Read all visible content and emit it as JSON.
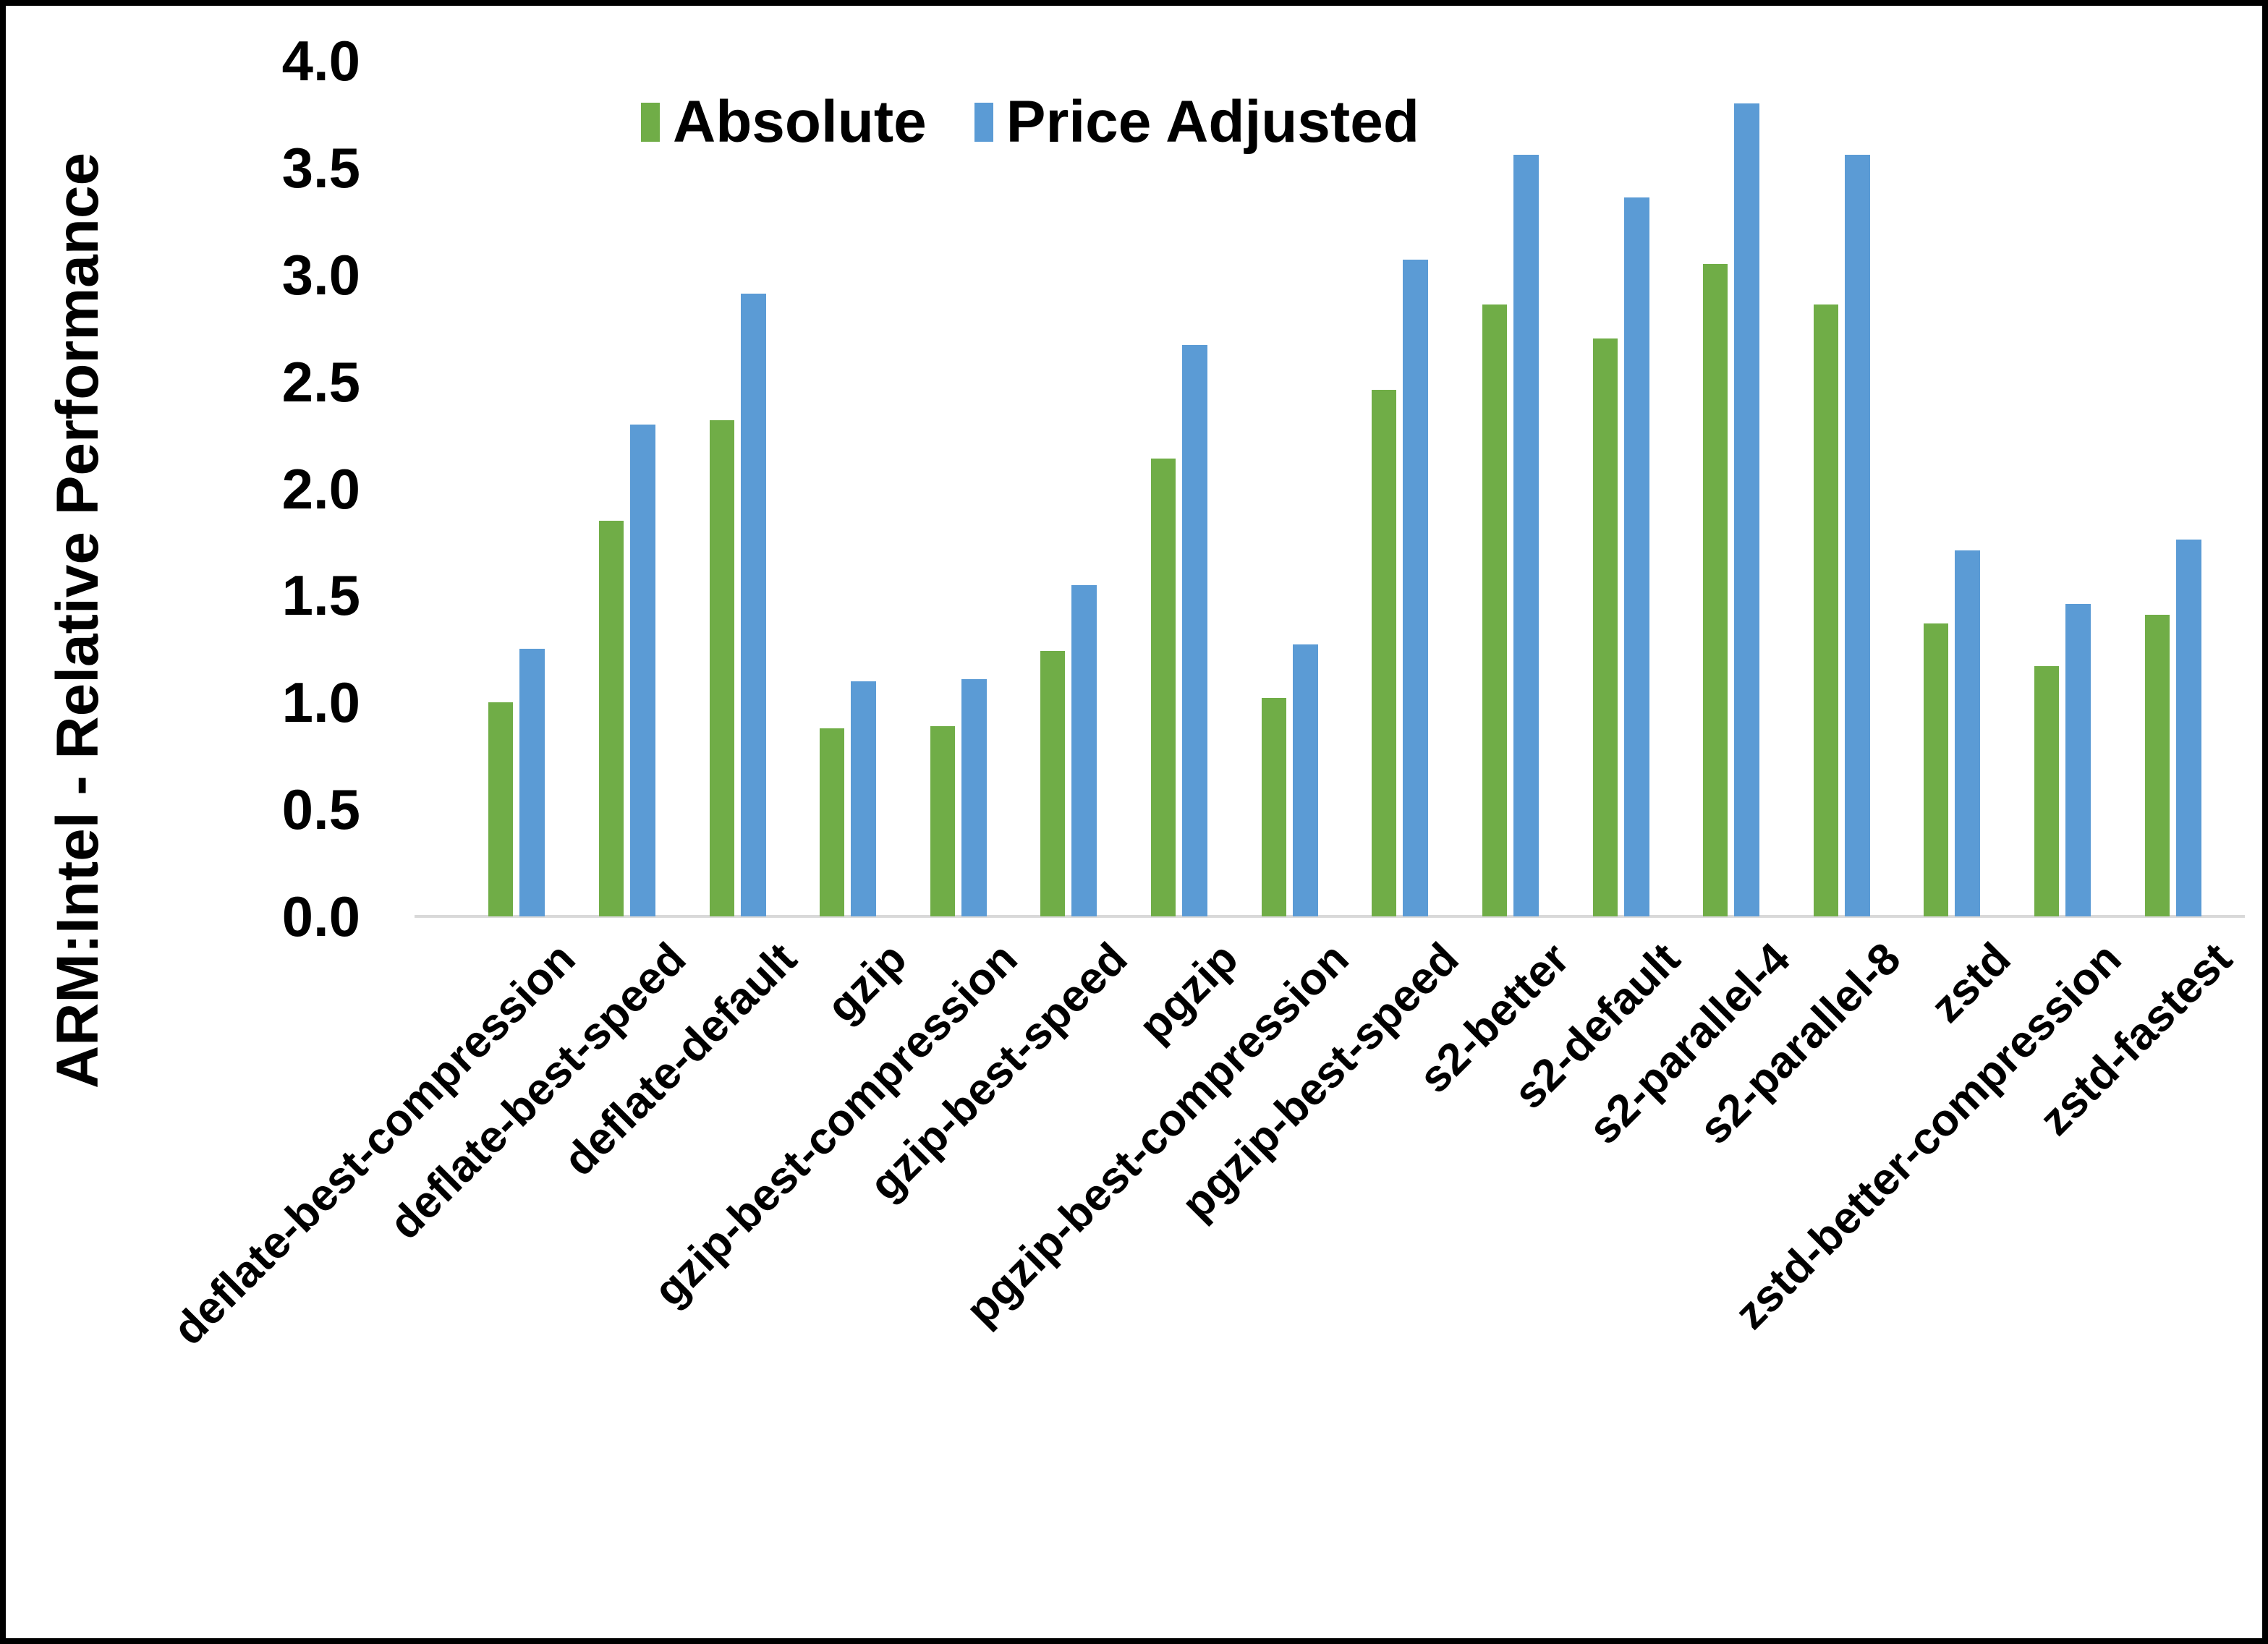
{
  "chart_data": {
    "type": "bar",
    "title": "",
    "ylabel": "ARM:Intel - Relative Performance",
    "xlabel": "",
    "ylim": [
      0,
      4.0
    ],
    "ytick_labels": [
      "4.0",
      "3.5",
      "3.0",
      "2.5",
      "2.0",
      "1.5",
      "1.0",
      "0.5",
      "0.0"
    ],
    "grid": false,
    "legend_position": "top-center",
    "categories": [
      "deflate-best-compression",
      "deflate-best-speed",
      "deflate-default",
      "gzip",
      "gzip-best-compression",
      "gzip-best-speed",
      "pgzip",
      "pgzip-best-compression",
      "pgzip-best-speed",
      "s2-better",
      "s2-default",
      "s2-parallel-4",
      "s2-parallel-8",
      "zstd",
      "zstd-better-compression",
      "zstd-fastest"
    ],
    "series": [
      {
        "name": "Absolute",
        "color": "#70AD47",
        "values": [
          1.0,
          1.85,
          2.32,
          0.88,
          0.89,
          1.24,
          2.14,
          1.02,
          2.46,
          2.86,
          2.7,
          3.05,
          2.86,
          1.37,
          1.17,
          1.41
        ]
      },
      {
        "name": "Price Adjusted",
        "color": "#5B9BD5",
        "values": [
          1.25,
          2.3,
          2.91,
          1.1,
          1.11,
          1.55,
          2.67,
          1.27,
          3.07,
          3.56,
          3.36,
          3.8,
          3.56,
          1.71,
          1.46,
          1.76
        ]
      }
    ],
    "colors": {
      "axis_line": "#D9D9D9",
      "text": "#000000",
      "background": "#FFFFFF",
      "frame": "#000000"
    }
  }
}
